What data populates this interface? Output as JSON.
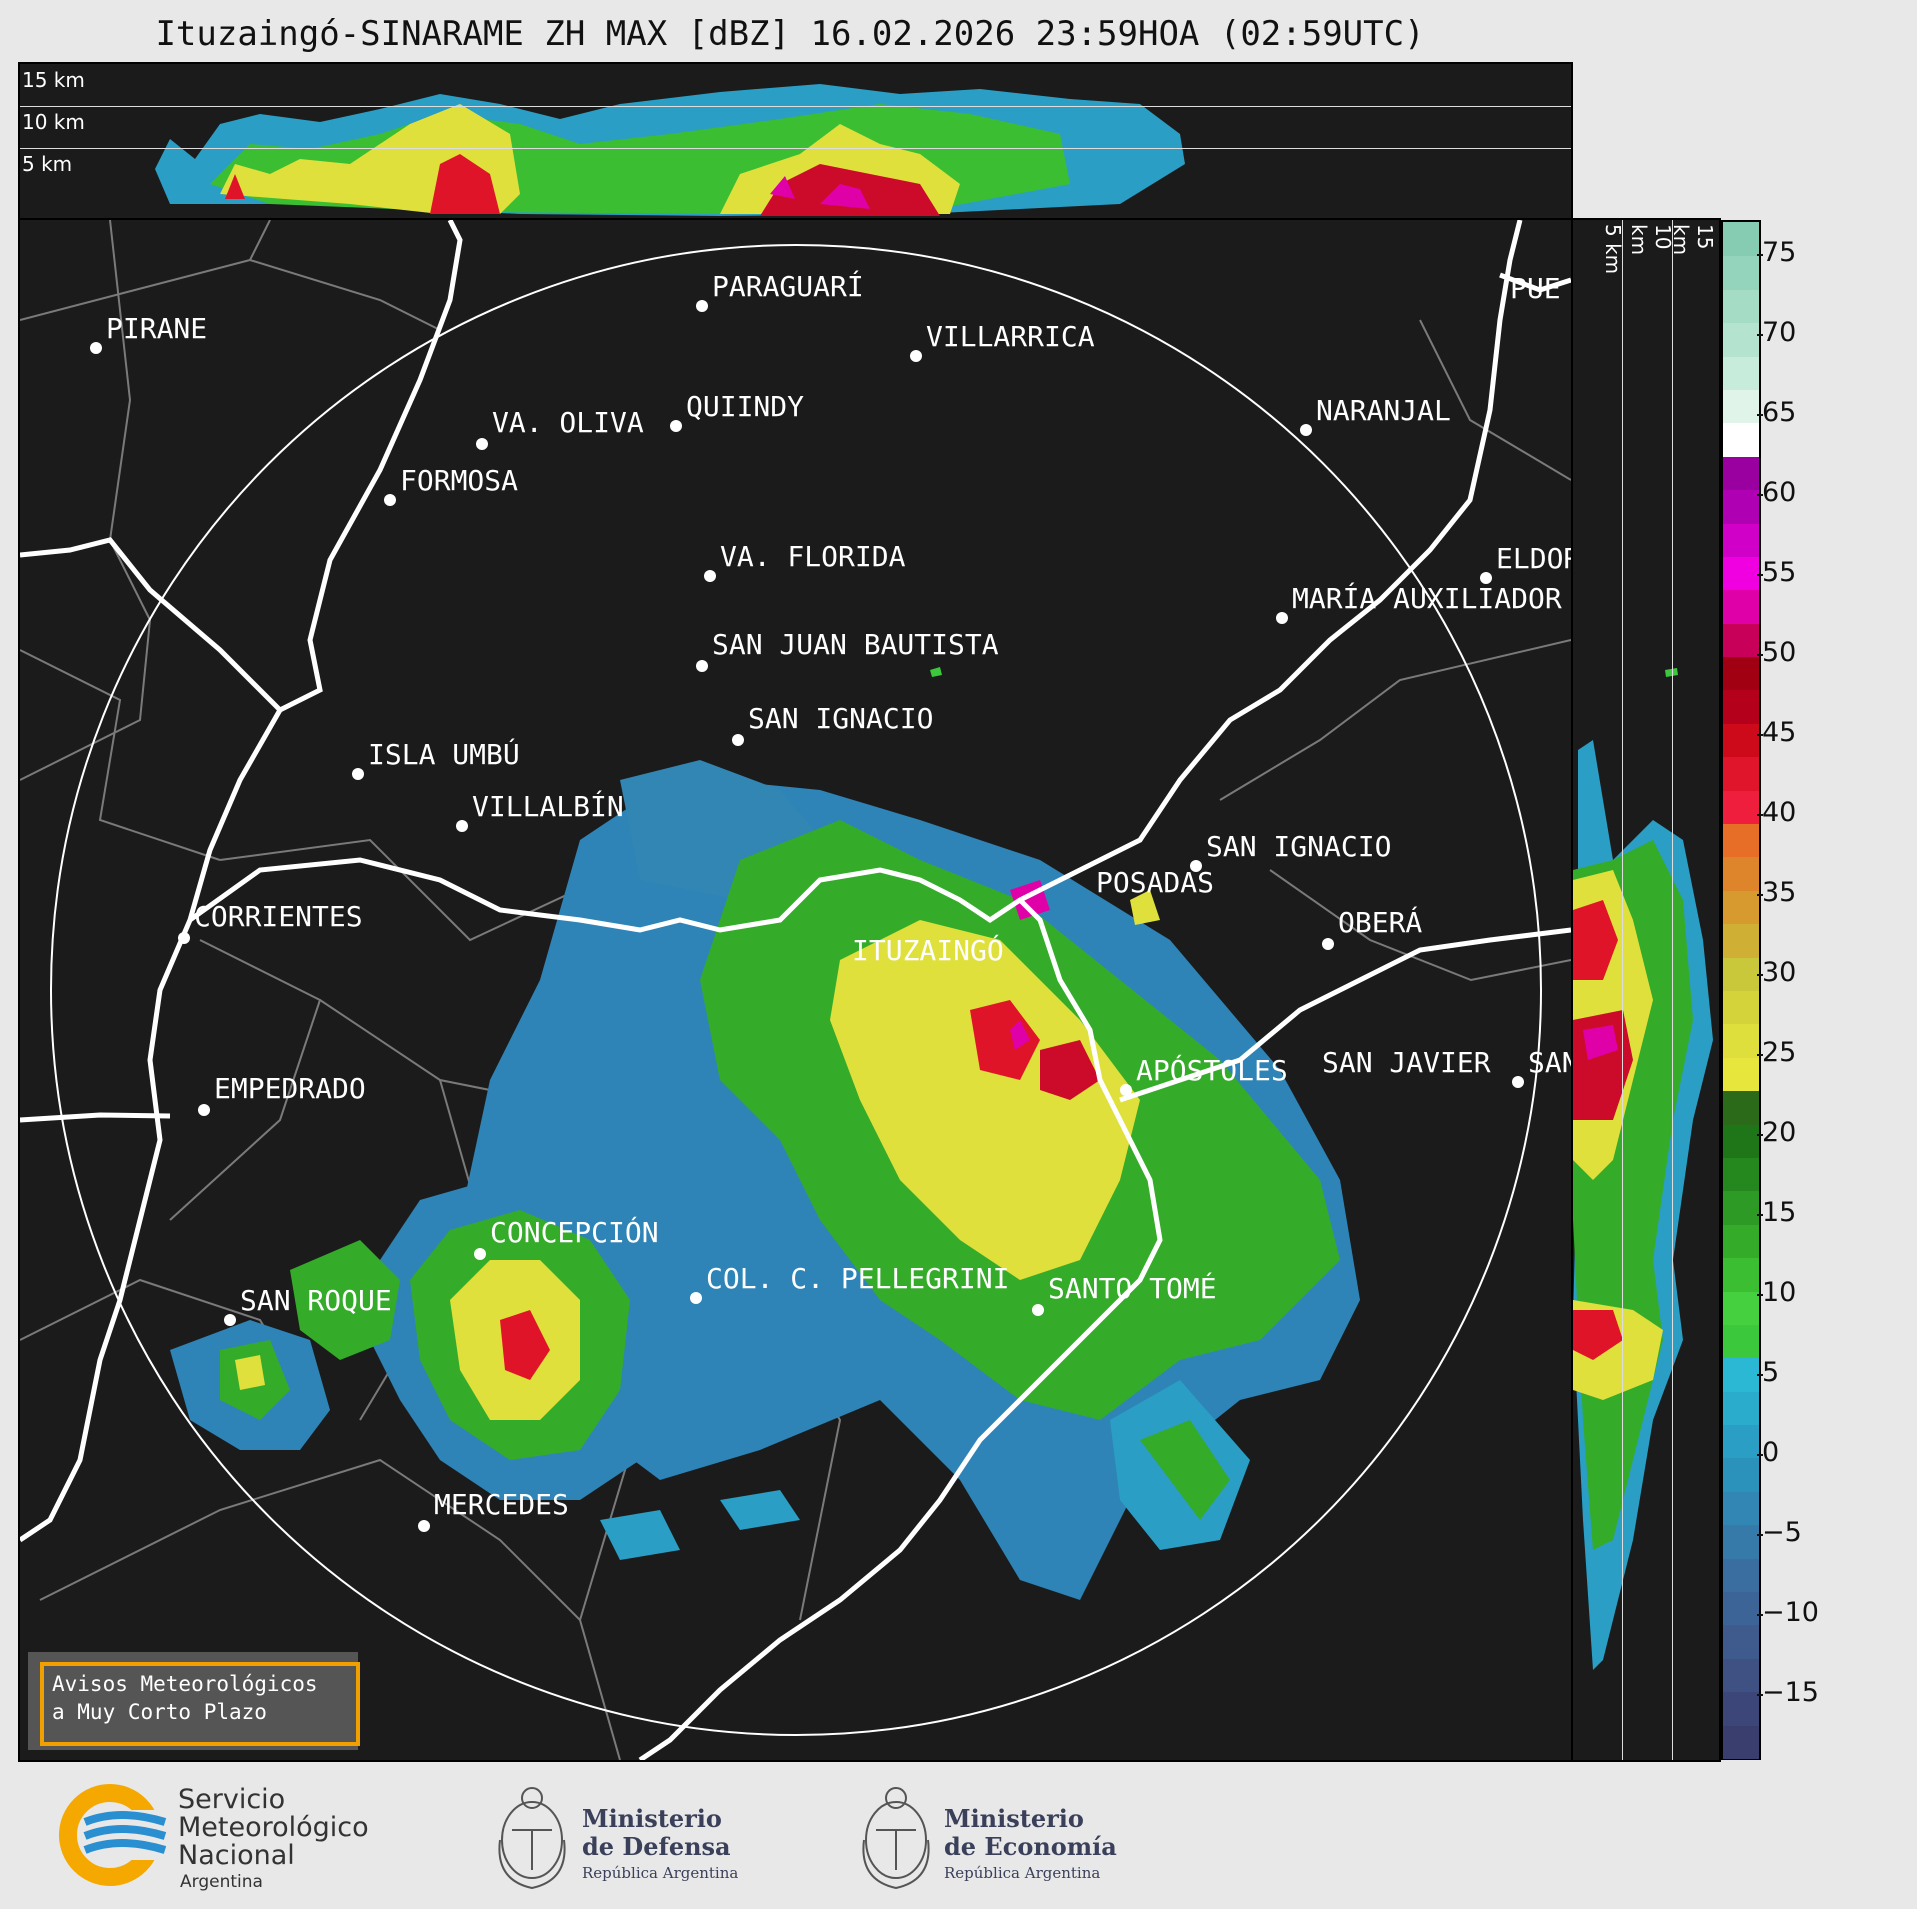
{
  "title": "Ituzaingó-SINARAME ZH MAX [dBZ] 16.02.2026 23:59HOA (02:59UTC)",
  "top_panel_labels": [
    "15 km",
    "10 km",
    "5 km"
  ],
  "side_panel_labels": [
    "5 km",
    "10 km",
    "15 km"
  ],
  "cities": [
    {
      "name": "PIRANE"
    },
    {
      "name": "PARAGUARÍ"
    },
    {
      "name": "VILLARRICA"
    },
    {
      "name": "VA. OLIVA"
    },
    {
      "name": "QUIINDY"
    },
    {
      "name": "NARANJAL"
    },
    {
      "name": "FORMOSA"
    },
    {
      "name": "VA. FLORIDA"
    },
    {
      "name": "ELDOR"
    },
    {
      "name": "MARÍA AUXILIADOR"
    },
    {
      "name": "SAN JUAN BAUTISTA"
    },
    {
      "name": "SAN IGNACIO"
    },
    {
      "name": "ISLA UMBÚ"
    },
    {
      "name": "VILLALBÍN"
    },
    {
      "name": "SAN IGNACIO"
    },
    {
      "name": "POSADAS"
    },
    {
      "name": "OBERÁ"
    },
    {
      "name": "CORRIENTES"
    },
    {
      "name": "ITUZAINGÓ"
    },
    {
      "name": "APÓSTOLES"
    },
    {
      "name": "SAN JAVIER"
    },
    {
      "name": "SAN"
    },
    {
      "name": "EMPEDRADO"
    },
    {
      "name": "CONCEPCIÓN"
    },
    {
      "name": "COL. C. PELLEGRINI"
    },
    {
      "name": "SAN ROQUE"
    },
    {
      "name": "SANTO TOMÉ"
    },
    {
      "name": "MERCEDES"
    },
    {
      "name": "PUE"
    }
  ],
  "colorbar": {
    "ticks": [
      "75",
      "70",
      "65",
      "60",
      "55",
      "50",
      "45",
      "40",
      "35",
      "30",
      "25",
      "20",
      "15",
      "10",
      "5",
      "0",
      "−5",
      "−10",
      "−15"
    ],
    "colors": [
      "#3a3e6e",
      "#3d4678",
      "#3f5082",
      "#3f5a8c",
      "#3d6496",
      "#3a6ea0",
      "#367aaa",
      "#3186b4",
      "#2b92bc",
      "#2a9ec4",
      "#2aaccc",
      "#2ab8d4",
      "#3cc83c",
      "#45d040",
      "#3cbe32",
      "#34ac2a",
      "#2c9a24",
      "#24881e",
      "#1e7618",
      "#2a6a18",
      "#e6e63c",
      "#dede3c",
      "#d4d43a",
      "#c8c83a",
      "#d0b034",
      "#d69a2e",
      "#de842a",
      "#e66e26",
      "#ee1e3c",
      "#e0142a",
      "#cc0a1a",
      "#b4001a",
      "#a00012",
      "#c8005a",
      "#e000a8",
      "#f000e0",
      "#d000c8",
      "#b000b4",
      "#9a00a0",
      "#ffffff",
      "#e0f4ea",
      "#c8ecdc",
      "#b4e4d0",
      "#a4dcc6",
      "#94d4bc",
      "#86ccb2"
    ],
    "color_scale": {
      "min": -19,
      "max": 77
    }
  },
  "notice": {
    "line1": "Avisos Meteorológicos",
    "line2": "a Muy Corto Plazo"
  },
  "logos": {
    "smn": {
      "line1": "Servicio",
      "line2": "Meteorológico",
      "line3": "Nacional",
      "line4": "Argentina",
      "colors": {
        "ring": "#f5a800",
        "waves": "#2a8fd0"
      }
    },
    "defensa": {
      "line1": "Ministerio",
      "line2": "de Defensa",
      "sub": "República Argentina"
    },
    "economia": {
      "line1": "Ministerio",
      "line2": "de Economía",
      "sub": "República Argentina"
    }
  }
}
